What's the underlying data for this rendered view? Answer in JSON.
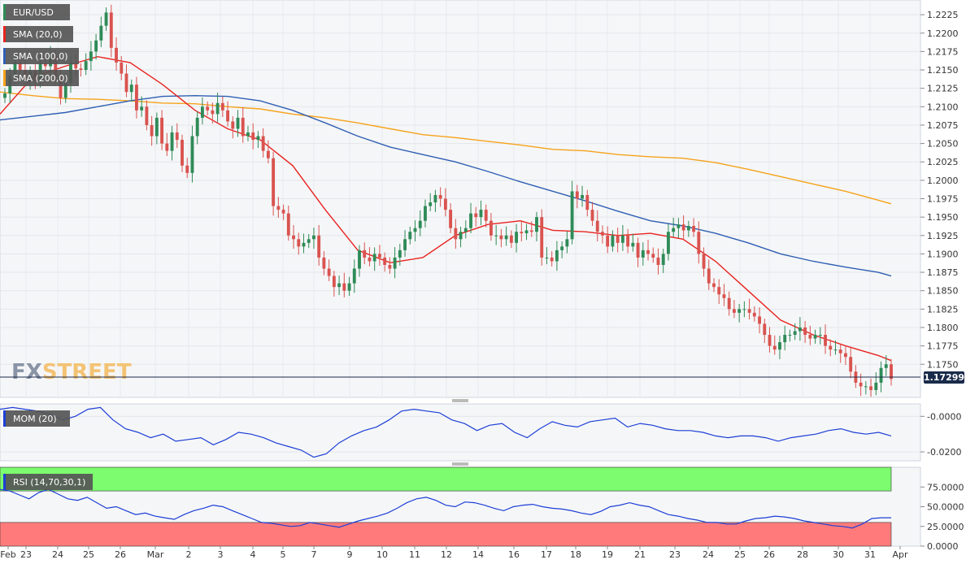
{
  "chart_data": {
    "type": "candlestick",
    "symbol": "EUR/USD",
    "last_price": "1.17299",
    "watermark": {
      "fx": "FX",
      "street": "STREET"
    },
    "x_labels": [
      "Feb",
      "23",
      "24",
      "25",
      "26",
      "Mar",
      "2",
      "3",
      "4",
      "5",
      "7",
      "9",
      "10",
      "11",
      "12",
      "14",
      "16",
      "17",
      "18",
      "19",
      "21",
      "23",
      "24",
      "25",
      "26",
      "28",
      "30",
      "31",
      "Apr"
    ],
    "price_axis": {
      "ylim": [
        1.1705,
        1.2245
      ],
      "ticks": [
        "1.2225",
        "1.2200",
        "1.2175",
        "1.2150",
        "1.2125",
        "1.2100",
        "1.2075",
        "1.2050",
        "1.2025",
        "1.2000",
        "1.1975",
        "1.1950",
        "1.1925",
        "1.1900",
        "1.1875",
        "1.1850",
        "1.1825",
        "1.1800",
        "1.1775",
        "1.1750"
      ]
    },
    "overlays": [
      {
        "label": "SMA (20,0)",
        "color": "#e8231f"
      },
      {
        "label": "SMA (100,0)",
        "color": "#2f5fb3"
      },
      {
        "label": "SMA (200,0)",
        "color": "#f5a31a"
      }
    ],
    "mom_panel": {
      "label": "MOM (20)",
      "color": "#1c3fd6",
      "ylim": [
        -0.025,
        0.007
      ],
      "ticks": [
        "-0.0000",
        "-0.0200"
      ]
    },
    "rsi_panel": {
      "label": "RSI (14,70,30,1)",
      "color": "#1c3fd6",
      "ylim": [
        0,
        100
      ],
      "ticks": [
        "75.0000",
        "50.0000",
        "25.0000",
        "0.0000"
      ],
      "overbought": 70,
      "oversold": 30
    },
    "colors": {
      "up": "#2e8b57",
      "down": "#d9534f",
      "last_price_line": "#1a2b4a",
      "legend_bg": "#555555",
      "overbought_fill": "#7cfc6e",
      "oversold_fill": "#ff7b7b"
    }
  }
}
